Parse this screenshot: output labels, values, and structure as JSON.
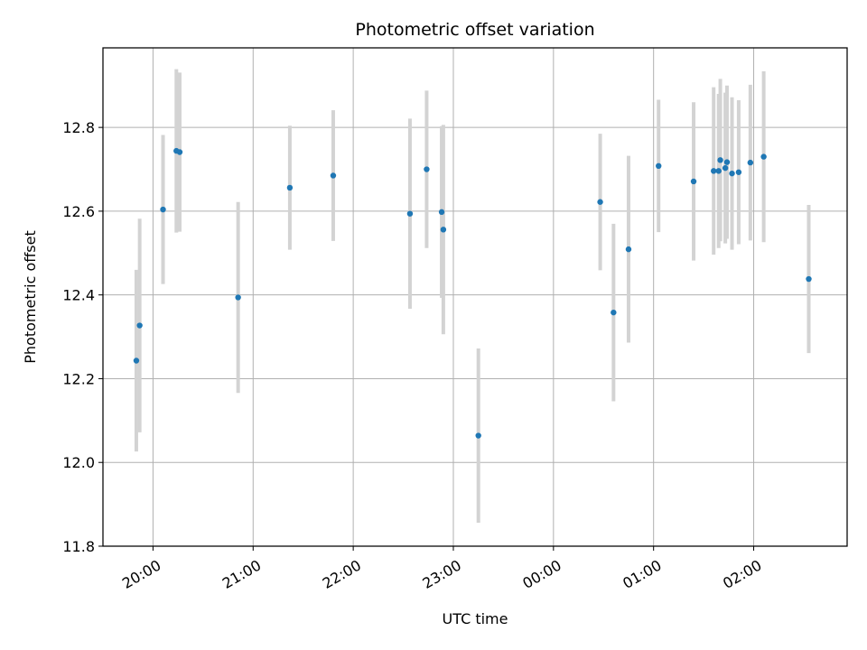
{
  "chart_data": {
    "type": "scatter",
    "title": "Photometric offset variation",
    "xlabel": "UTC time",
    "ylabel": "Photometric offset",
    "x_is_time": true,
    "x_tick_labels": [
      "20:00",
      "21:00",
      "22:00",
      "23:00",
      "00:00",
      "01:00",
      "02:00"
    ],
    "y_tick_labels": [
      "11.8",
      "12.0",
      "12.2",
      "12.4",
      "12.6",
      "12.8"
    ],
    "xlim": [
      "19:30",
      "02:56"
    ],
    "ylim": [
      11.8,
      12.99
    ],
    "grid": true,
    "marker_color": "#1f77b4",
    "errorbar_color": "#d3d3d3",
    "series": [
      {
        "points": [
          {
            "x": "19:50",
            "y": 12.243,
            "err": 0.217
          },
          {
            "x": "19:52",
            "y": 12.327,
            "err": 0.255
          },
          {
            "x": "20:06",
            "y": 12.604,
            "err": 0.178
          },
          {
            "x": "20:14",
            "y": 12.744,
            "err": 0.195
          },
          {
            "x": "20:16",
            "y": 12.741,
            "err": 0.19
          },
          {
            "x": "20:51",
            "y": 12.394,
            "err": 0.228
          },
          {
            "x": "21:22",
            "y": 12.656,
            "err": 0.148
          },
          {
            "x": "21:48",
            "y": 12.685,
            "err": 0.156
          },
          {
            "x": "22:34",
            "y": 12.594,
            "err": 0.227
          },
          {
            "x": "22:44",
            "y": 12.7,
            "err": 0.188
          },
          {
            "x": "22:53",
            "y": 12.598,
            "err": 0.205
          },
          {
            "x": "22:54",
            "y": 12.556,
            "err": 0.25
          },
          {
            "x": "23:15",
            "y": 12.064,
            "err": 0.208
          },
          {
            "x": "00:28",
            "y": 12.622,
            "err": 0.163
          },
          {
            "x": "00:36",
            "y": 12.358,
            "err": 0.212
          },
          {
            "x": "00:45",
            "y": 12.509,
            "err": 0.223
          },
          {
            "x": "01:03",
            "y": 12.708,
            "err": 0.158
          },
          {
            "x": "01:24",
            "y": 12.671,
            "err": 0.189
          },
          {
            "x": "01:36",
            "y": 12.696,
            "err": 0.2
          },
          {
            "x": "01:39",
            "y": 12.696,
            "err": 0.184
          },
          {
            "x": "01:40",
            "y": 12.722,
            "err": 0.194
          },
          {
            "x": "01:43",
            "y": 12.703,
            "err": 0.18
          },
          {
            "x": "01:44",
            "y": 12.717,
            "err": 0.183
          },
          {
            "x": "01:47",
            "y": 12.69,
            "err": 0.182
          },
          {
            "x": "01:51",
            "y": 12.693,
            "err": 0.172
          },
          {
            "x": "01:58",
            "y": 12.716,
            "err": 0.186
          },
          {
            "x": "02:06",
            "y": 12.73,
            "err": 0.204
          },
          {
            "x": "02:33",
            "y": 12.438,
            "err": 0.177
          }
        ]
      }
    ]
  }
}
